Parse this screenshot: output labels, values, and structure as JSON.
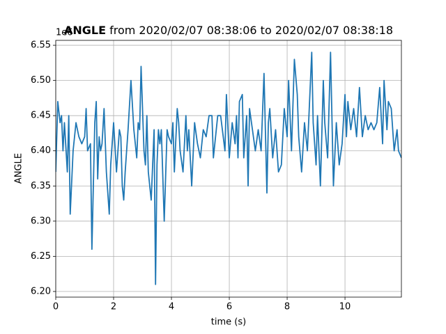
{
  "chart_data": {
    "type": "line",
    "title_bold": "ANGLE",
    "title_rest": "from 2020/02/07 08:38:06 to 2020/02/07 08:38:18",
    "x_label": "time (s)",
    "y_label": "ANGLE",
    "y_offset": "1e6",
    "color": "#1f77b4",
    "grid": true,
    "xlim": [
      0,
      11.95
    ],
    "ylim": [
      6.192,
      6.557
    ],
    "xticks": [
      0,
      2,
      4,
      6,
      8,
      10
    ],
    "yticks": [
      {
        "value": 6.2,
        "label": "6.20"
      },
      {
        "value": 6.25,
        "label": "6.25"
      },
      {
        "value": 6.3,
        "label": "6.30"
      },
      {
        "value": 6.35,
        "label": "6.35"
      },
      {
        "value": 6.4,
        "label": "6.40"
      },
      {
        "value": 6.45,
        "label": "6.45"
      },
      {
        "value": 6.5,
        "label": "6.50"
      },
      {
        "value": 6.55,
        "label": "6.55"
      }
    ],
    "x": [
      0,
      0.07,
      0.15,
      0.2,
      0.25,
      0.3,
      0.4,
      0.45,
      0.5,
      0.6,
      0.7,
      0.8,
      0.9,
      1.0,
      1.05,
      1.1,
      1.2,
      1.25,
      1.35,
      1.4,
      1.45,
      1.5,
      1.55,
      1.6,
      1.67,
      1.75,
      1.85,
      1.9,
      2.0,
      2.1,
      2.2,
      2.25,
      2.3,
      2.35,
      2.4,
      2.5,
      2.6,
      2.7,
      2.8,
      2.85,
      2.9,
      2.95,
      3.05,
      3.1,
      3.15,
      3.2,
      3.3,
      3.4,
      3.45,
      3.5,
      3.55,
      3.6,
      3.65,
      3.75,
      3.85,
      3.9,
      4.0,
      4.05,
      4.1,
      4.2,
      4.25,
      4.3,
      4.4,
      4.5,
      4.55,
      4.6,
      4.7,
      4.8,
      4.9,
      5.0,
      5.1,
      5.2,
      5.3,
      5.4,
      5.45,
      5.5,
      5.6,
      5.7,
      5.85,
      5.9,
      6.0,
      6.1,
      6.2,
      6.25,
      6.3,
      6.35,
      6.45,
      6.5,
      6.6,
      6.65,
      6.7,
      6.8,
      6.9,
      7.0,
      7.1,
      7.2,
      7.3,
      7.35,
      7.4,
      7.5,
      7.6,
      7.7,
      7.8,
      7.9,
      8.0,
      8.05,
      8.15,
      8.25,
      8.35,
      8.4,
      8.5,
      8.6,
      8.7,
      8.85,
      8.9,
      9.0,
      9.05,
      9.15,
      9.25,
      9.3,
      9.4,
      9.5,
      9.6,
      9.7,
      9.8,
      9.9,
      10.0,
      10.05,
      10.1,
      10.2,
      10.3,
      10.4,
      10.5,
      10.6,
      10.7,
      10.8,
      10.9,
      11.0,
      11.1,
      11.2,
      11.3,
      11.35,
      11.45,
      11.5,
      11.6,
      11.7,
      11.8,
      11.85,
      11.95
    ],
    "values": [
      6.37,
      6.47,
      6.44,
      6.45,
      6.4,
      6.44,
      6.37,
      6.45,
      6.31,
      6.4,
      6.44,
      6.42,
      6.41,
      6.42,
      6.46,
      6.4,
      6.41,
      6.26,
      6.44,
      6.47,
      6.36,
      6.42,
      6.4,
      6.41,
      6.46,
      6.37,
      6.31,
      6.38,
      6.44,
      6.37,
      6.43,
      6.42,
      6.35,
      6.33,
      6.37,
      6.43,
      6.5,
      6.43,
      6.39,
      6.44,
      6.43,
      6.52,
      6.4,
      6.38,
      6.45,
      6.37,
      6.33,
      6.43,
      6.21,
      6.38,
      6.43,
      6.41,
      6.43,
      6.3,
      6.43,
      6.42,
      6.41,
      6.44,
      6.37,
      6.46,
      6.44,
      6.4,
      6.37,
      6.45,
      6.4,
      6.43,
      6.35,
      6.44,
      6.41,
      6.39,
      6.43,
      6.42,
      6.45,
      6.45,
      6.39,
      6.41,
      6.45,
      6.45,
      6.4,
      6.48,
      6.39,
      6.44,
      6.41,
      6.45,
      6.39,
      6.47,
      6.48,
      6.39,
      6.45,
      6.35,
      6.46,
      6.43,
      6.4,
      6.43,
      6.4,
      6.51,
      6.34,
      6.44,
      6.46,
      6.39,
      6.43,
      6.37,
      6.38,
      6.46,
      6.42,
      6.5,
      6.4,
      6.53,
      6.48,
      6.42,
      6.37,
      6.44,
      6.4,
      6.54,
      6.44,
      6.38,
      6.45,
      6.35,
      6.5,
      6.44,
      6.39,
      6.54,
      6.35,
      6.44,
      6.38,
      6.41,
      6.48,
      6.42,
      6.47,
      6.43,
      6.46,
      6.42,
      6.49,
      6.42,
      6.45,
      6.43,
      6.44,
      6.43,
      6.44,
      6.49,
      6.41,
      6.5,
      6.43,
      6.47,
      6.46,
      6.4,
      6.43,
      6.4,
      6.39
    ]
  }
}
